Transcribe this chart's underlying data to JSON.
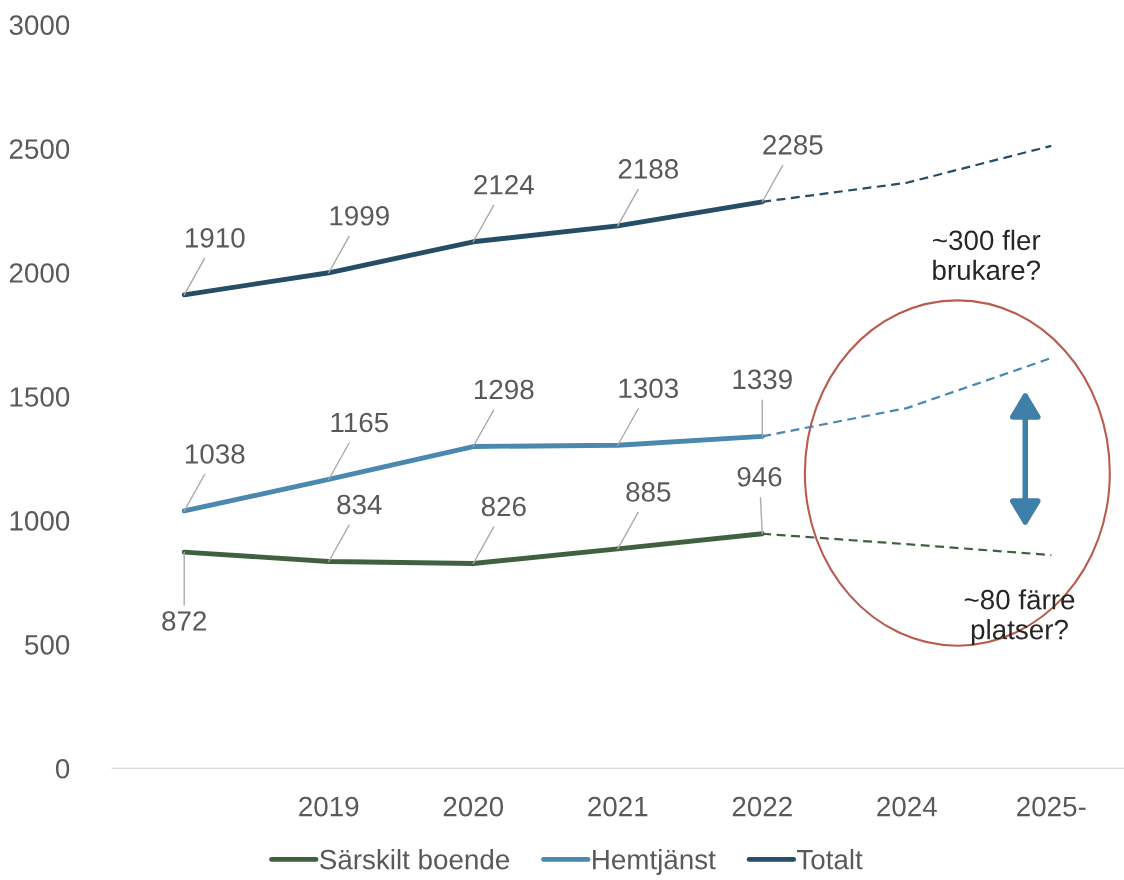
{
  "chart_data": {
    "type": "line",
    "categories": [
      null,
      "2019",
      "2020",
      "2021",
      "2022",
      "2024",
      "2025-"
    ],
    "ylim": [
      0,
      3000
    ],
    "yticks": [
      0,
      500,
      1000,
      1500,
      2000,
      2500,
      3000
    ],
    "grid": false,
    "legend": "bottom",
    "marker": "none",
    "series": [
      {
        "name": "Särskilt boende",
        "color": "#3f6140",
        "line_style": "solid",
        "values": [
          872,
          834,
          826,
          885,
          946,
          null,
          null
        ],
        "value_labels": [
          "872",
          "834",
          "826",
          "885",
          "946",
          null,
          null
        ]
      },
      {
        "name": "Hemtjänst",
        "color": "#4a88b0",
        "line_style": "solid",
        "values": [
          1038,
          1165,
          1298,
          1303,
          1339,
          null,
          null
        ],
        "value_labels": [
          "1038",
          "1165",
          "1298",
          "1303",
          "1339",
          null,
          null
        ]
      },
      {
        "name": "Totalt",
        "color": "#264d66",
        "line_style": "solid",
        "values": [
          1910,
          1999,
          2124,
          2188,
          2285,
          null,
          null
        ],
        "value_labels": [
          "1910",
          "1999",
          "2124",
          "2188",
          "2285",
          null,
          null
        ]
      },
      {
        "color": "#3f6140",
        "line_style": "dashed",
        "values": [
          null,
          null,
          null,
          null,
          946,
          904,
          860
        ]
      },
      {
        "color": "#4a88b0",
        "line_style": "dashed",
        "values": [
          null,
          null,
          null,
          null,
          1339,
          1453,
          1655
        ]
      },
      {
        "color": "#264d66",
        "line_style": "dashed",
        "values": [
          null,
          null,
          null,
          null,
          2285,
          2362,
          2511
        ]
      }
    ],
    "annotations": [
      "~300 fler\nbrukare?",
      "~80 färre\nplatser?"
    ]
  }
}
